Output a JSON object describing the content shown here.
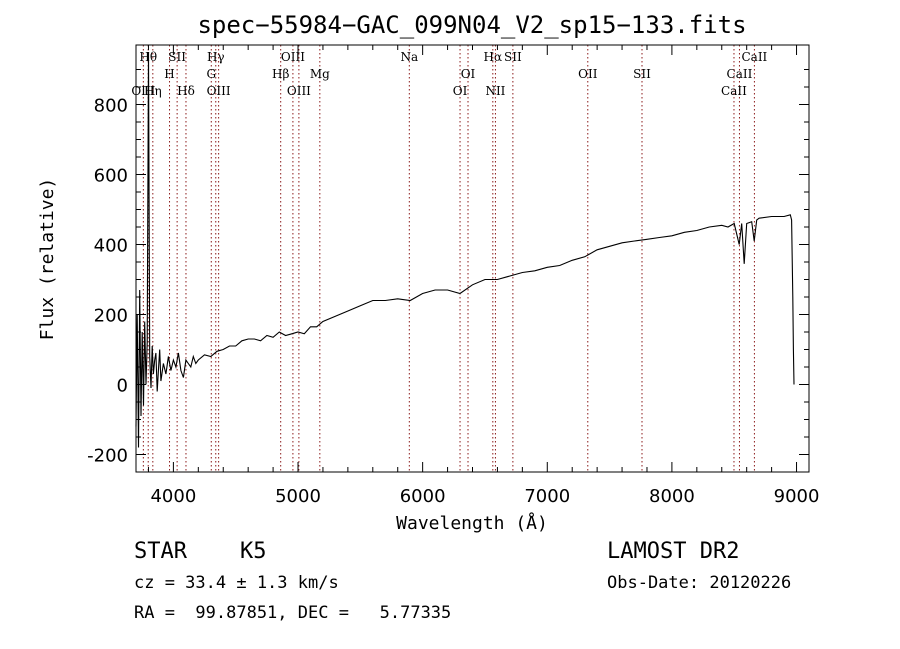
{
  "chart_data": {
    "type": "line",
    "title": "spec−55984−GAC_099N04_V2_sp15−133.fits",
    "xlabel": "Wavelength (Å)",
    "ylabel": "Flux (relative)",
    "xlim": [
      3700,
      9100
    ],
    "ylim": [
      -250,
      970
    ],
    "xticks": [
      4000,
      5000,
      6000,
      7000,
      8000,
      9000
    ],
    "yticks": [
      -200,
      0,
      200,
      400,
      600,
      800
    ],
    "grid": false,
    "legend": "none",
    "series": [
      {
        "color": "#000000",
        "x": [
          3700,
          3710,
          3720,
          3730,
          3740,
          3750,
          3760,
          3770,
          3780,
          3790,
          3800,
          3810,
          3820,
          3830,
          3840,
          3850,
          3860,
          3870,
          3880,
          3890,
          3900,
          3920,
          3940,
          3960,
          3980,
          4000,
          4020,
          4040,
          4060,
          4080,
          4100,
          4120,
          4140,
          4160,
          4180,
          4200,
          4250,
          4300,
          4350,
          4400,
          4450,
          4500,
          4550,
          4600,
          4650,
          4700,
          4750,
          4800,
          4850,
          4900,
          4950,
          5000,
          5050,
          5100,
          5150,
          5200,
          5300,
          5400,
          5500,
          5600,
          5700,
          5800,
          5900,
          6000,
          6100,
          6200,
          6300,
          6400,
          6500,
          6600,
          6700,
          6800,
          6900,
          7000,
          7100,
          7200,
          7300,
          7400,
          7500,
          7600,
          7700,
          7800,
          7900,
          8000,
          8100,
          8200,
          8300,
          8400,
          8450,
          8500,
          8540,
          8560,
          8580,
          8600,
          8640,
          8660,
          8680,
          8700,
          8800,
          8900,
          8950,
          8960,
          8970,
          8975,
          8980
        ],
        "y": [
          -120,
          200,
          -180,
          270,
          -90,
          150,
          -60,
          180,
          0,
          120,
          950,
          80,
          -10,
          110,
          30,
          70,
          90,
          -20,
          40,
          100,
          10,
          60,
          30,
          80,
          40,
          70,
          50,
          90,
          40,
          20,
          70,
          60,
          50,
          80,
          60,
          70,
          85,
          80,
          95,
          100,
          110,
          110,
          125,
          130,
          130,
          125,
          140,
          135,
          150,
          140,
          145,
          150,
          145,
          165,
          165,
          180,
          195,
          210,
          225,
          240,
          240,
          245,
          240,
          260,
          270,
          270,
          260,
          285,
          300,
          300,
          310,
          320,
          325,
          335,
          340,
          355,
          365,
          385,
          395,
          405,
          410,
          415,
          420,
          425,
          435,
          440,
          450,
          455,
          450,
          460,
          400,
          460,
          345,
          460,
          465,
          410,
          470,
          475,
          480,
          480,
          485,
          470,
          250,
          100,
          0
        ]
      }
    ],
    "lines": [
      {
        "label": "Hθ",
        "x": 3798,
        "row": 0
      },
      {
        "label": "OIII",
        "x": 3759,
        "row": 2
      },
      {
        "label": "Hη",
        "x": 3835,
        "row": 2
      },
      {
        "label": "H",
        "x": 3969,
        "row": 1
      },
      {
        "label": "SII",
        "x": 4030,
        "row": 0
      },
      {
        "label": "Hδ",
        "x": 4101,
        "row": 2
      },
      {
        "label": "Hγ",
        "x": 4340,
        "row": 0
      },
      {
        "label": "G",
        "x": 4304,
        "row": 1
      },
      {
        "label": "OIII",
        "x": 4363,
        "row": 2
      },
      {
        "label": "OIII",
        "x": 4959,
        "row": 0
      },
      {
        "label": "Hβ",
        "x": 4861,
        "row": 1
      },
      {
        "label": "OIII",
        "x": 5007,
        "row": 2
      },
      {
        "label": "Mg",
        "x": 5175,
        "row": 1
      },
      {
        "label": "Na",
        "x": 5893,
        "row": 0
      },
      {
        "label": "OI",
        "x": 6364,
        "row": 1
      },
      {
        "label": "OI",
        "x": 6300,
        "row": 2
      },
      {
        "label": "Hα",
        "x": 6563,
        "row": 0
      },
      {
        "label": "SII",
        "x": 6724,
        "row": 0
      },
      {
        "label": "NII",
        "x": 6584,
        "row": 2
      },
      {
        "label": "OII",
        "x": 7325,
        "row": 1
      },
      {
        "label": "SII",
        "x": 7760,
        "row": 1
      },
      {
        "label": "CaII",
        "x": 8662,
        "row": 0
      },
      {
        "label": "CaII",
        "x": 8542,
        "row": 1
      },
      {
        "label": "CaII",
        "x": 8498,
        "row": 2
      }
    ]
  },
  "info": {
    "object_class": "STAR",
    "subclass": "K5",
    "survey": "LAMOST DR2",
    "cz": "cz = 33.4 ± 1.3 km/s",
    "obs_date": "Obs-Date: 20120226",
    "coords": "RA =  99.87851, DEC =   5.77335"
  }
}
